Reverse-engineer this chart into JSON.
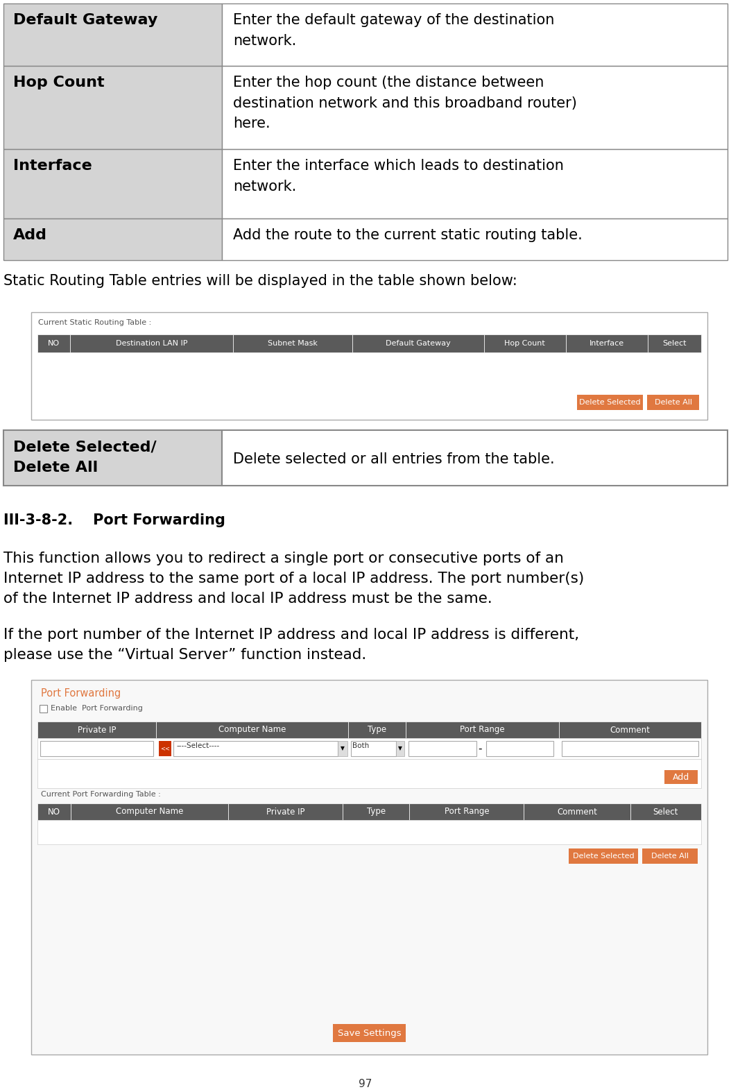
{
  "bg_color": "#ffffff",
  "table1_rows": [
    {
      "label": "Default Gateway",
      "desc": "Enter the default gateway of the destination\nnetwork."
    },
    {
      "label": "Hop Count",
      "desc": "Enter the hop count (the distance between\ndestination network and this broadband router)\nhere."
    },
    {
      "label": "Interface",
      "desc": "Enter the interface which leads to destination\nnetwork."
    },
    {
      "label": "Add",
      "desc": "Add the route to the current static routing table."
    }
  ],
  "table1_label_col_bg": "#d4d4d4",
  "table1_border_color": "#888888",
  "static_routing_text": "Static Routing Table entries will be displayed in the table shown below:",
  "routing_table_label": "Current Static Routing Table :",
  "routing_headers": [
    "NO",
    "Destination LAN IP",
    "Subnet Mask",
    "Default Gateway",
    "Hop Count",
    "Interface",
    "Select"
  ],
  "routing_header_bg": "#5a5a5a",
  "routing_header_color": "#ffffff",
  "btn_color": "#e07840",
  "btn_text_color": "#ffffff",
  "delete_selected_btn": "Delete Selected",
  "delete_all_btn": "Delete All",
  "table2_rows": [
    {
      "label": "Delete Selected/\nDelete All",
      "desc": "Delete selected or all entries from the table."
    }
  ],
  "table2_label_col_bg": "#d4d4d4",
  "section_title": "III-3-8-2.    Port Forwarding",
  "para1": "This function allows you to redirect a single port or consecutive ports of an\nInternet IP address to the same port of a local IP address. The port number(s)\nof the Internet IP address and local IP address must be the same.",
  "para2": "If the port number of the Internet IP address and local IP address is different,\nplease use the “Virtual Server” function instead.",
  "pf_title": "Port Forwarding",
  "pf_title_color": "#e07840",
  "pf_enable_text": "Enable  Port Forwarding",
  "pf_headers1": [
    "Private IP",
    "Computer Name",
    "Type",
    "Port Range",
    "Comment"
  ],
  "pf_header_bg": "#5a5a5a",
  "pf_header_color": "#ffffff",
  "pf_select_placeholder": "----Select----",
  "pf_type_placeholder": "Both",
  "add_btn": "Add",
  "pf_table_label": "Current Port Forwarding Table :",
  "pf_headers2": [
    "NO",
    "Computer Name",
    "Private IP",
    "Type",
    "Port Range",
    "Comment",
    "Select"
  ],
  "save_btn": "Save Settings",
  "page_number": "97"
}
